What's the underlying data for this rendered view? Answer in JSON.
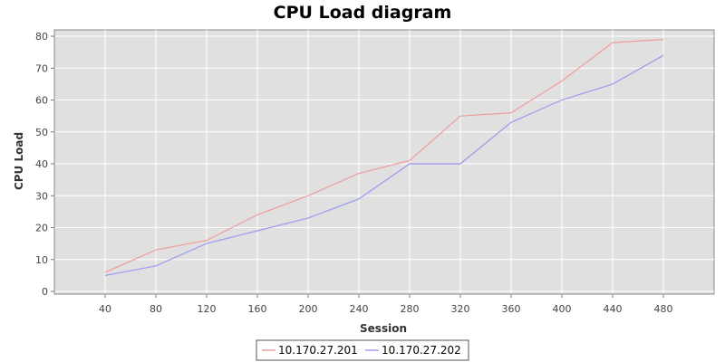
{
  "chart_data": {
    "type": "line",
    "title": "CPU Load diagram",
    "xlabel": "Session",
    "ylabel": "CPU Load",
    "x": [
      40,
      80,
      120,
      160,
      200,
      240,
      280,
      320,
      360,
      400,
      440,
      480
    ],
    "xlim": [
      0,
      520
    ],
    "ylim": [
      0,
      82
    ],
    "yticks": [
      0,
      10,
      20,
      30,
      40,
      50,
      60,
      70,
      80
    ],
    "grid": true,
    "legend_position": "bottom",
    "series": [
      {
        "name": "10.170.27.201",
        "color": "#f09b9b",
        "values": [
          6,
          13,
          16,
          24,
          30,
          37,
          41,
          55,
          56,
          66,
          78,
          79
        ]
      },
      {
        "name": "10.170.27.202",
        "color": "#9a9af0",
        "values": [
          5,
          8,
          15,
          19,
          23,
          29,
          40,
          40,
          53,
          60,
          65,
          74
        ]
      }
    ],
    "plot_background": "#e0e0e0",
    "grid_color": "#ffffff"
  }
}
